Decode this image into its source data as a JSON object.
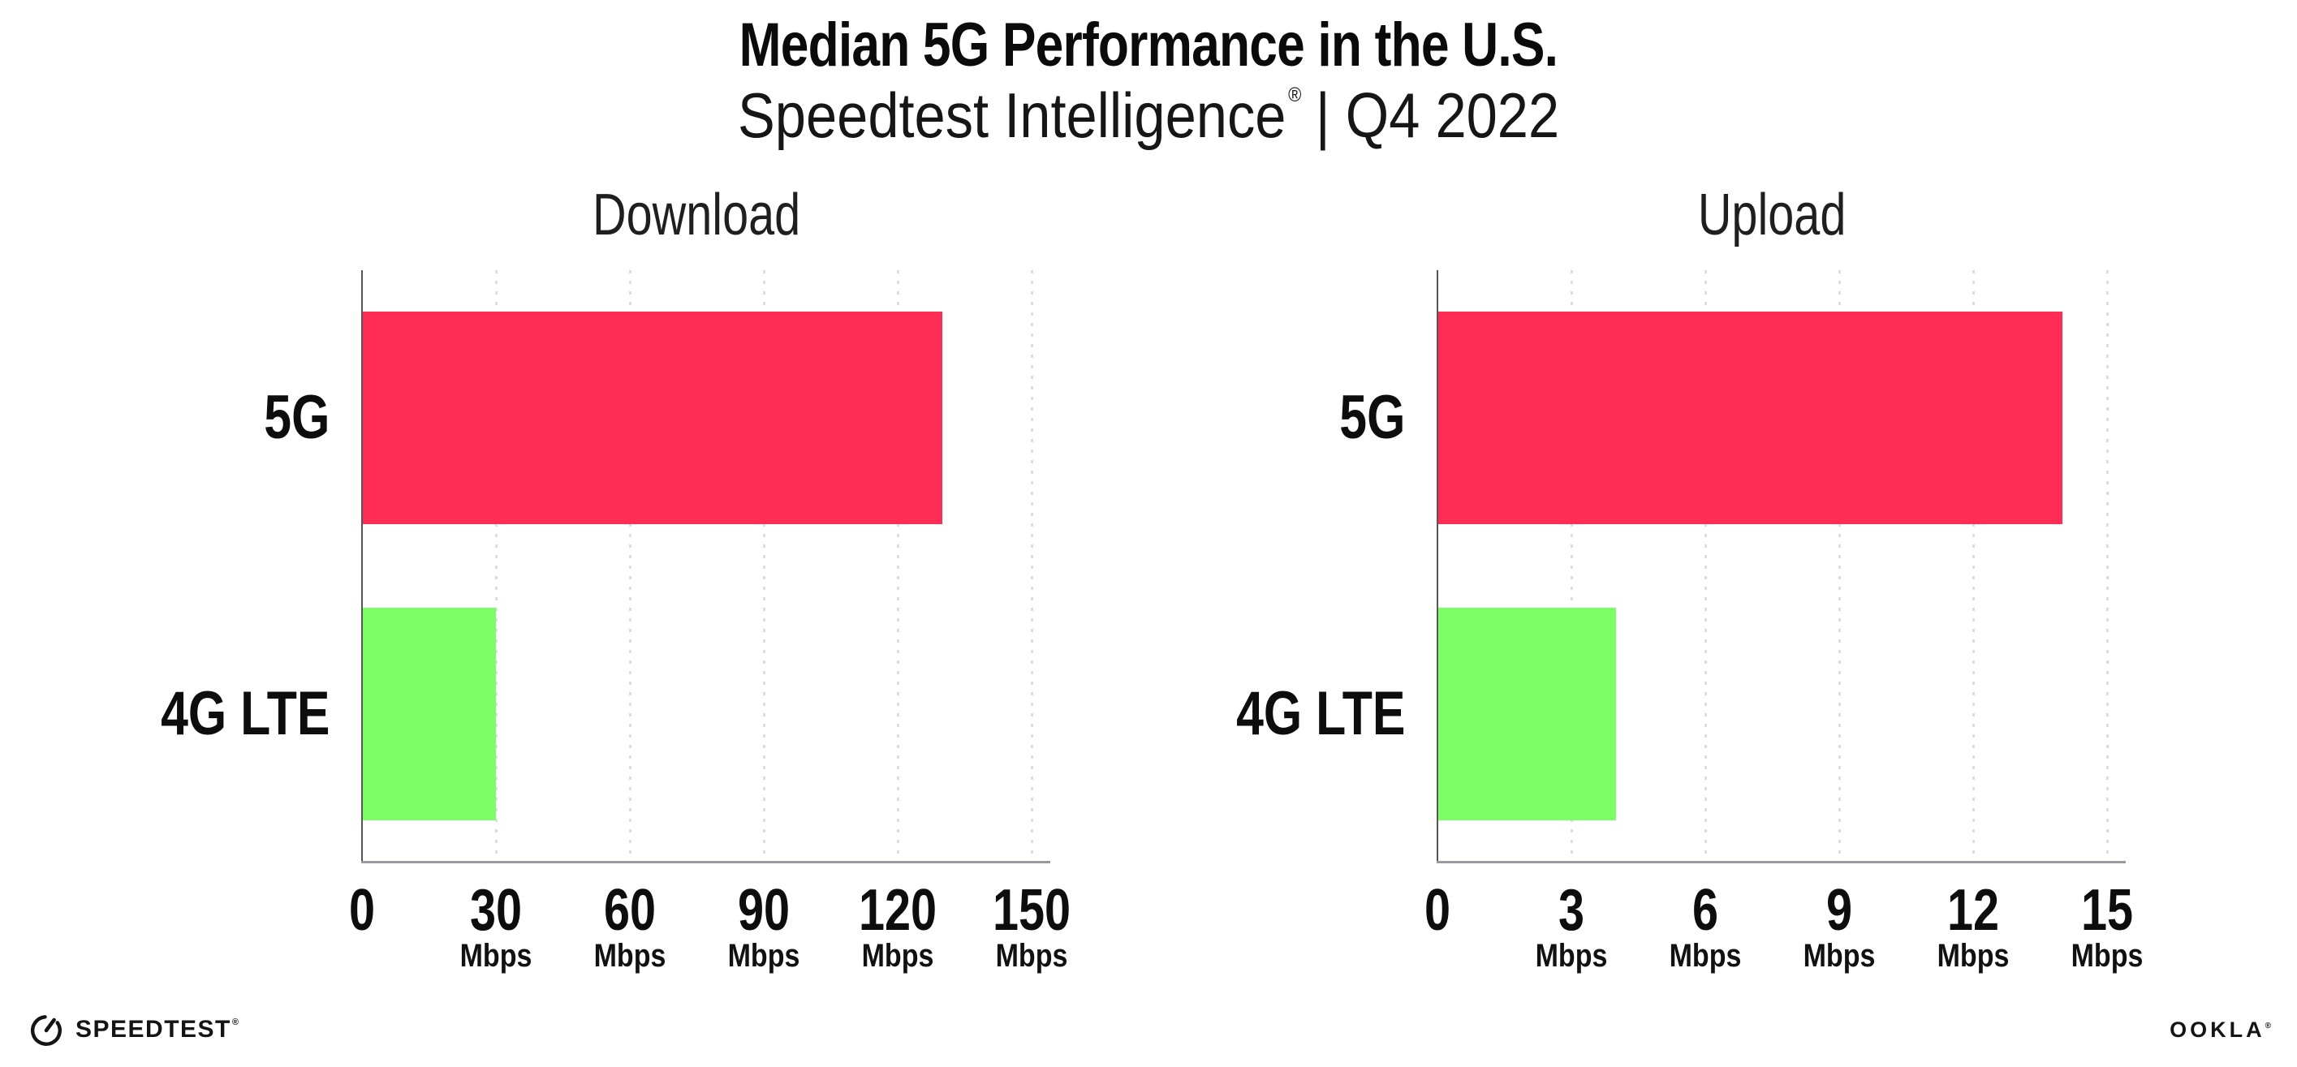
{
  "header": {
    "title": "Median 5G Performance in the U.S.",
    "subtitle_brand": "Speedtest Intelligence",
    "subtitle_reg": "®",
    "subtitle_suffix": "| Q4 2022"
  },
  "chart_data": [
    {
      "type": "bar",
      "orientation": "horizontal",
      "title": "Download",
      "categories": [
        "5G",
        "4G LTE"
      ],
      "values": [
        130,
        30
      ],
      "unit": "Mbps",
      "xlabel": "",
      "ylabel": "",
      "xlim": [
        0,
        150
      ],
      "ticks": [
        0,
        30,
        60,
        90,
        120,
        150
      ],
      "colors": [
        "#ff2d55",
        "#7dfd66"
      ],
      "grid": "vertical-dotted",
      "legend": "none"
    },
    {
      "type": "bar",
      "orientation": "horizontal",
      "title": "Upload",
      "categories": [
        "5G",
        "4G LTE"
      ],
      "values": [
        14,
        4
      ],
      "unit": "Mbps",
      "xlabel": "",
      "ylabel": "",
      "xlim": [
        0,
        15
      ],
      "ticks": [
        0,
        3,
        6,
        9,
        12,
        15
      ],
      "colors": [
        "#ff2d55",
        "#7dfd66"
      ],
      "grid": "vertical-dotted",
      "legend": "none"
    }
  ],
  "footer": {
    "speedtest_label": "SPEEDTEST",
    "speedtest_reg": "®",
    "ookla_label": "OOKLA",
    "ookla_reg": "®"
  },
  "colors": {
    "bar_5g": "#ff2d55",
    "bar_4g_lte": "#7dfd66",
    "axis": "#9a9aa0",
    "gridline": "#dcdce6",
    "text": "#0d0d0d",
    "background": "#ffffff"
  }
}
